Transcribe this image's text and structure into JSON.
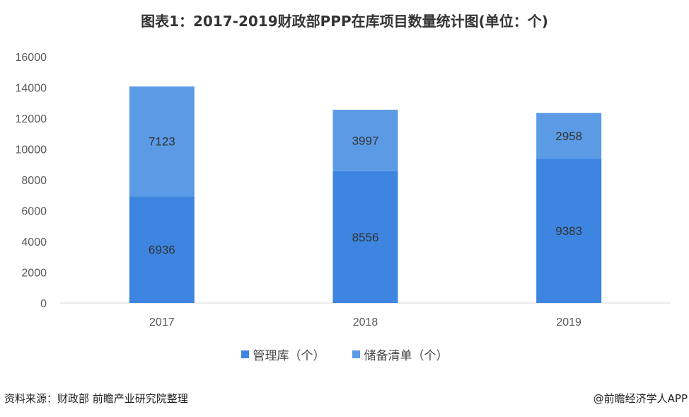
{
  "title": "图表1：2017-2019财政部PPP在库项目数量统计图(单位：个)",
  "source": "资料来源：财政部 前瞻产业研究院整理",
  "credit": "@前瞻经济学人APP",
  "colors": {
    "managed": "#3d85e0",
    "reserve": "#5b9be6",
    "axis": "#d9d9d9",
    "text": "#595959"
  },
  "chart_data": {
    "type": "bar",
    "stacked": true,
    "categories": [
      "2017",
      "2018",
      "2019"
    ],
    "series": [
      {
        "name": "管理库（个）",
        "values": [
          6936,
          8556,
          9383
        ]
      },
      {
        "name": "储备清单（个）",
        "values": [
          7123,
          3997,
          2958
        ]
      }
    ],
    "y_ticks": [
      "0",
      "2000",
      "4000",
      "6000",
      "8000",
      "10000",
      "12000",
      "14000",
      "16000"
    ],
    "ylim": [
      0,
      16000
    ],
    "grid": false,
    "legend_position": "bottom"
  }
}
